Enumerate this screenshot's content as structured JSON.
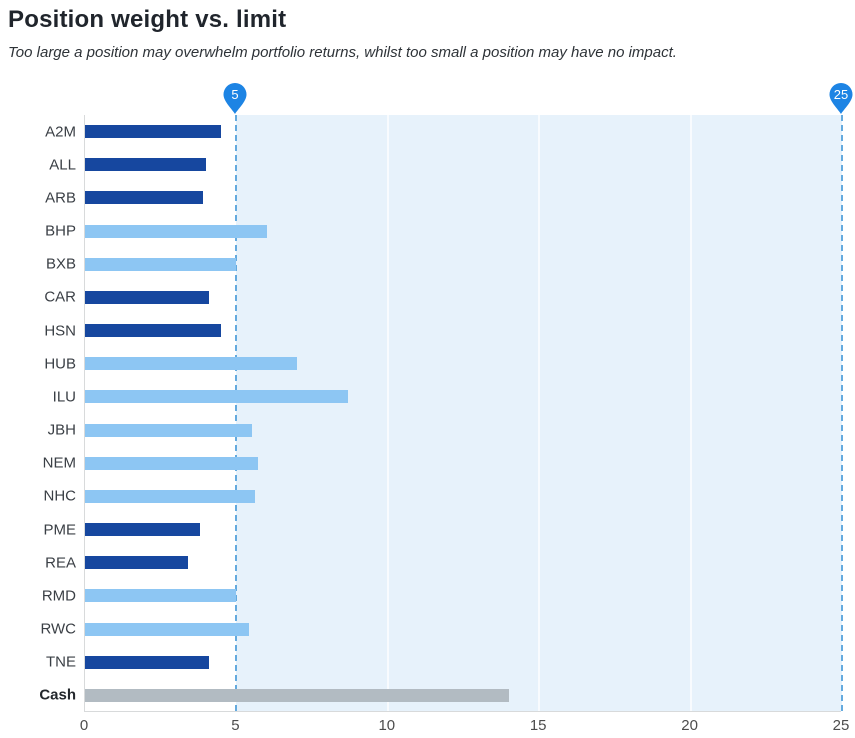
{
  "header": {
    "title": "Position weight vs. limit",
    "subtitle": "Too large a position may overwhelm portfolio returns, whilst too small a position may have no impact."
  },
  "chart_data": {
    "type": "bar",
    "orientation": "horizontal",
    "title": "Position weight vs. limit",
    "categories": [
      "A2M",
      "ALL",
      "ARB",
      "BHP",
      "BXB",
      "CAR",
      "HSN",
      "HUB",
      "ILU",
      "JBH",
      "NEM",
      "NHC",
      "PME",
      "REA",
      "RMD",
      "RWC",
      "TNE",
      "Cash"
    ],
    "values": [
      4.5,
      4.0,
      3.9,
      6.0,
      5.0,
      4.1,
      4.5,
      7.0,
      8.7,
      5.5,
      5.7,
      5.6,
      3.8,
      3.4,
      5.0,
      5.4,
      4.1,
      14.0
    ],
    "points": [
      {
        "label": "A2M",
        "value": 4.5,
        "style": "dark",
        "label_bold": false
      },
      {
        "label": "ALL",
        "value": 4.0,
        "style": "dark",
        "label_bold": false
      },
      {
        "label": "ARB",
        "value": 3.9,
        "style": "dark",
        "label_bold": false
      },
      {
        "label": "BHP",
        "value": 6.0,
        "style": "light",
        "label_bold": false
      },
      {
        "label": "BXB",
        "value": 5.0,
        "style": "light",
        "label_bold": false
      },
      {
        "label": "CAR",
        "value": 4.1,
        "style": "dark",
        "label_bold": false
      },
      {
        "label": "HSN",
        "value": 4.5,
        "style": "dark",
        "label_bold": false
      },
      {
        "label": "HUB",
        "value": 7.0,
        "style": "light",
        "label_bold": false
      },
      {
        "label": "ILU",
        "value": 8.7,
        "style": "light",
        "label_bold": false
      },
      {
        "label": "JBH",
        "value": 5.5,
        "style": "light",
        "label_bold": false
      },
      {
        "label": "NEM",
        "value": 5.7,
        "style": "light",
        "label_bold": false
      },
      {
        "label": "NHC",
        "value": 5.6,
        "style": "light",
        "label_bold": false
      },
      {
        "label": "PME",
        "value": 3.8,
        "style": "dark",
        "label_bold": false
      },
      {
        "label": "REA",
        "value": 3.4,
        "style": "dark",
        "label_bold": false
      },
      {
        "label": "RMD",
        "value": 5.0,
        "style": "light",
        "label_bold": false
      },
      {
        "label": "RWC",
        "value": 5.4,
        "style": "light",
        "label_bold": false
      },
      {
        "label": "TNE",
        "value": 4.1,
        "style": "dark",
        "label_bold": false
      },
      {
        "label": "Cash",
        "value": 14.0,
        "style": "gray",
        "label_bold": true
      }
    ],
    "xlabel": "",
    "ylabel": "",
    "xlim": [
      0,
      25
    ],
    "x_ticks": [
      "0",
      "5",
      "10",
      "15",
      "20",
      "25"
    ],
    "x_tick_values": [
      0,
      5,
      10,
      15,
      20,
      25
    ],
    "grid_lines": [
      10,
      15,
      20
    ],
    "legend": "none",
    "band": {
      "from": 5,
      "to": 25
    },
    "markers": [
      {
        "label": "5",
        "value": 5
      },
      {
        "label": "25",
        "value": 25
      }
    ]
  },
  "colors": {
    "dark_bar": "#16479f",
    "light_bar": "#8dc6f3",
    "gray_bar": "#b2bbc2",
    "pin": "#1d84e4",
    "pin_text": "#ffffff",
    "dash_line": "#64aade",
    "band_fill": "#e7f2fb",
    "axis_line": "#d8dadb",
    "text": "#3a3f45"
  }
}
